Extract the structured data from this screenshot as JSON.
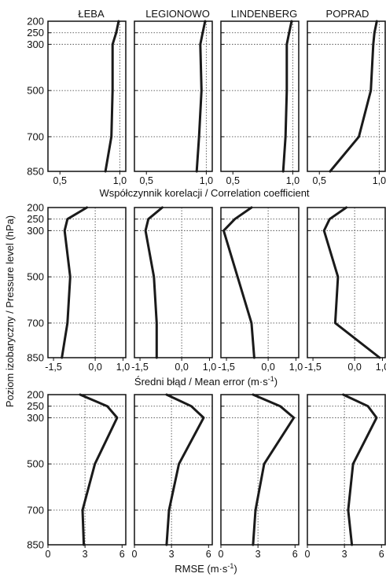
{
  "figure": {
    "stations": [
      "ŁEBA",
      "LEGIONOWO",
      "LINDENBERG",
      "POPRAD"
    ],
    "y_axis_label": "Poziom izobaryczny / Pressure level (hPa)",
    "pressure_levels": [
      200,
      250,
      300,
      500,
      700,
      850
    ],
    "colors": {
      "line": "#1a1a1a",
      "frame": "#111111",
      "grid": "#555555"
    }
  },
  "chart_data": [
    {
      "type": "line",
      "title": "",
      "xlabel": "Współczynnik korelacji / Correlation coefficient",
      "ylabel": "Poziom izobaryczny / Pressure level (hPa)",
      "xlim": [
        0.4,
        1.05
      ],
      "ylim": [
        850,
        200
      ],
      "xticks": [
        0.5,
        1.0
      ],
      "xtick_labels": [
        "0,5",
        "1,0"
      ],
      "gridlines_x": [
        1.0
      ],
      "gridlines_y": [
        250,
        300,
        500,
        700
      ],
      "levels": [
        200,
        250,
        300,
        500,
        700,
        850
      ],
      "series": [
        {
          "name": "ŁEBA",
          "values": [
            0.99,
            0.97,
            0.94,
            0.94,
            0.93,
            0.88
          ]
        },
        {
          "name": "LEGIONOWO",
          "values": [
            0.99,
            0.97,
            0.95,
            0.96,
            0.94,
            0.92
          ]
        },
        {
          "name": "LINDENBERG",
          "values": [
            0.99,
            0.97,
            0.95,
            0.95,
            0.94,
            0.92
          ]
        },
        {
          "name": "POPRAD",
          "values": [
            0.98,
            0.96,
            0.95,
            0.93,
            0.83,
            0.59
          ]
        }
      ]
    },
    {
      "type": "line",
      "title": "",
      "xlabel": "Średni błąd / Mean error (m·s",
      "xlabel_superscript": "-1",
      "xlabel_suffix": ")",
      "ylabel": "Poziom izobaryczny / Pressure level (hPa)",
      "xlim": [
        -1.7,
        1.1
      ],
      "ylim": [
        850,
        200
      ],
      "xticks": [
        -1.5,
        0.0,
        1.0
      ],
      "xtick_labels": [
        "-1,5",
        "0,0",
        "1,0"
      ],
      "gridlines_x": [
        0.0
      ],
      "gridlines_y": [
        250,
        300,
        500,
        700
      ],
      "levels": [
        200,
        250,
        300,
        500,
        700,
        850
      ],
      "series": [
        {
          "name": "ŁEBA",
          "values": [
            -0.3,
            -1.0,
            -1.1,
            -0.9,
            -1.0,
            -1.2
          ]
        },
        {
          "name": "LEGIONOWO",
          "values": [
            -0.7,
            -1.2,
            -1.3,
            -1.0,
            -0.9,
            -0.9
          ]
        },
        {
          "name": "LINDENBERG",
          "values": [
            -0.6,
            -1.2,
            -1.6,
            -1.1,
            -0.6,
            -0.5
          ]
        },
        {
          "name": "POPRAD",
          "values": [
            -0.3,
            -0.9,
            -1.1,
            -0.6,
            -0.7,
            0.9
          ]
        }
      ]
    },
    {
      "type": "line",
      "title": "",
      "xlabel": "RMSE (m·s",
      "xlabel_superscript": "-1",
      "xlabel_suffix": ")",
      "ylabel": "Poziom izobaryczny / Pressure level (hPa)",
      "xlim": [
        0,
        6.3
      ],
      "ylim": [
        850,
        200
      ],
      "xticks": [
        0,
        3,
        6
      ],
      "xtick_labels": [
        "0",
        "3",
        "6"
      ],
      "gridlines_x": [
        3
      ],
      "gridlines_y": [
        250,
        300,
        500,
        700
      ],
      "levels": [
        200,
        250,
        300,
        500,
        700,
        850
      ],
      "series": [
        {
          "name": "ŁEBA",
          "values": [
            2.6,
            4.8,
            5.6,
            3.8,
            2.8,
            2.9
          ]
        },
        {
          "name": "LEGIONOWO",
          "values": [
            2.6,
            4.6,
            5.6,
            3.6,
            2.8,
            2.6
          ]
        },
        {
          "name": "LINDENBERG",
          "values": [
            2.6,
            4.8,
            5.9,
            3.5,
            2.8,
            2.6
          ]
        },
        {
          "name": "POPRAD",
          "values": [
            2.9,
            4.9,
            5.6,
            3.7,
            3.3,
            3.6
          ]
        }
      ]
    }
  ]
}
